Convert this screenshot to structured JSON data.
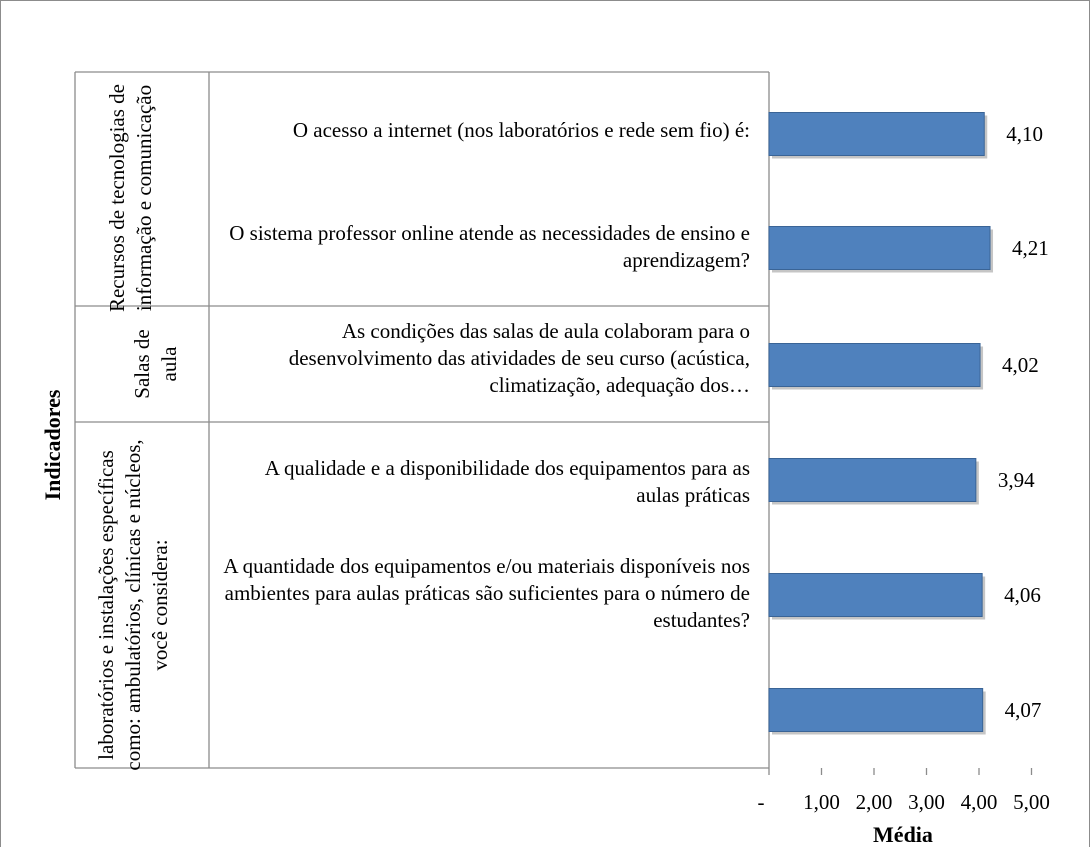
{
  "chart_data": {
    "type": "bar",
    "orientation": "horizontal",
    "ylabel": "Indicadores",
    "xlabel": "Média",
    "xlim": [
      0,
      5
    ],
    "x_ticks": [
      "-",
      "1,00",
      "2,00",
      "3,00",
      "4,00",
      "5,00"
    ],
    "bar_color": "#4f81bd",
    "groups": [
      {
        "label": "Recursos de tecnologias de informação e comunicação",
        "items": [
          {
            "question": "O acesso a internet (nos laboratórios e rede sem fio) é:",
            "value": 4.1,
            "value_label": "4,10"
          },
          {
            "question": "O sistema professor online atende as necessidades de ensino e aprendizagem?",
            "value": 4.21,
            "value_label": "4,21"
          }
        ]
      },
      {
        "label": "Salas de aula",
        "items": [
          {
            "question": "As condições das salas de aula colaboram para o desenvolvimento das atividades de seu curso (acústica, climatização, adequação dos…",
            "value": 4.02,
            "value_label": "4,02"
          }
        ]
      },
      {
        "label": "laboratórios e instalações específicas como: ambulatórios, clínicas e núcleos, você considera:",
        "items": [
          {
            "question": "A qualidade e a disponibilidade dos equipamentos para as aulas práticas",
            "value": 3.94,
            "value_label": "3,94"
          },
          {
            "question": "A quantidade dos equipamentos e/ou materiais disponíveis nos ambientes para aulas práticas são suficientes para o número de estudantes?",
            "value": 4.06,
            "value_label": "4,06"
          },
          {
            "question": "",
            "value": 4.07,
            "value_label": "4,07"
          }
        ]
      }
    ]
  }
}
